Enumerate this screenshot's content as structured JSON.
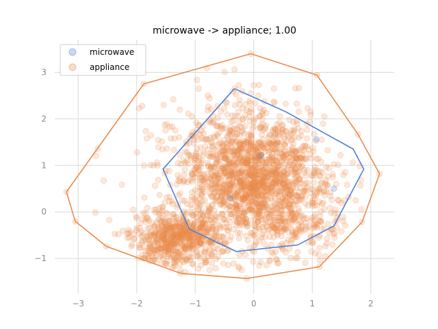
{
  "chart_data": {
    "type": "scatter",
    "title": "microwave -> appliance; 1.00",
    "xlabel": "",
    "ylabel": "",
    "xlim": [
      -3.4,
      2.4
    ],
    "ylim": [
      -1.75,
      3.7
    ],
    "xticks": [
      -3,
      -2,
      -1,
      0,
      1,
      2
    ],
    "yticks": [
      -1,
      0,
      1,
      2,
      3
    ],
    "xtick_labels": [
      "−3",
      "−2",
      "−1",
      "0",
      "1",
      "2"
    ],
    "ytick_labels": [
      "−1",
      "0",
      "1",
      "2",
      "3"
    ],
    "grid": true,
    "legend_position": "upper-left",
    "series": [
      {
        "name": "microwave",
        "color": "#4f7fd6",
        "marker_alpha": 0.25,
        "hull": [
          [
            -0.33,
            2.65
          ],
          [
            0.55,
            2.15
          ],
          [
            1.7,
            1.35
          ],
          [
            1.88,
            0.92
          ],
          [
            1.37,
            -0.3
          ],
          [
            0.75,
            -0.71
          ],
          [
            -0.3,
            -0.85
          ],
          [
            -1.1,
            -0.37
          ],
          [
            -1.55,
            0.92
          ]
        ],
        "points": [
          [
            1.37,
            0.5
          ],
          [
            1.07,
            1.56
          ],
          [
            0.12,
            1.2
          ],
          [
            -0.4,
            0.3
          ]
        ]
      },
      {
        "name": "appliance",
        "color": "#eb8a4a",
        "marker_alpha": 0.2,
        "hull": [
          [
            -0.05,
            3.4
          ],
          [
            1.08,
            2.94
          ],
          [
            1.78,
            1.67
          ],
          [
            2.15,
            0.82
          ],
          [
            1.85,
            -0.22
          ],
          [
            1.12,
            -1.18
          ],
          [
            -0.12,
            -1.43
          ],
          [
            -1.25,
            -1.32
          ],
          [
            -2.52,
            -0.74
          ],
          [
            -3.05,
            -0.2
          ],
          [
            -3.2,
            0.43
          ],
          [
            -1.88,
            2.75
          ]
        ]
      }
    ]
  }
}
